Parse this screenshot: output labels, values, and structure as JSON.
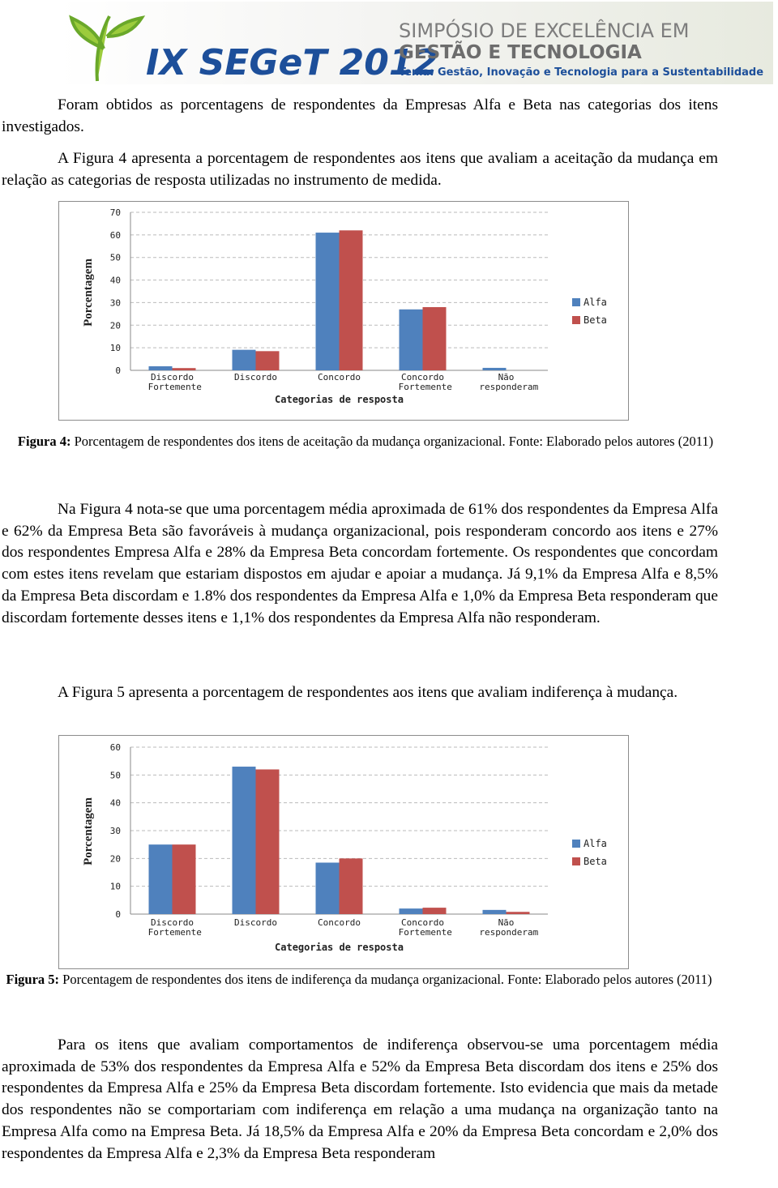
{
  "header": {
    "event": "IX SEGeT 2012",
    "line1": "SIMPÓSIO DE EXCELÊNCIA EM",
    "line2": "GESTÃO E TECNOLOGIA",
    "theme": "Tema: Gestão, Inovação e Tecnologia para a Sustentabilidade"
  },
  "paragraphs": [
    "Foram obtidos as porcentagens de respondentes da Empresas Alfa e Beta nas categorias dos itens investigados.",
    "A Figura 4 apresenta a porcentagem de respondentes aos itens que avaliam a aceitação da mudança em relação as categorias de resposta utilizadas no instrumento de medida.",
    "Na Figura 4 nota-se que uma porcentagem média aproximada de 61% dos respondentes da Empresa Alfa e 62% da Empresa Beta são favoráveis à mudança organizacional, pois responderam concordo aos itens e 27% dos respondentes Empresa Alfa e 28% da Empresa Beta concordam fortemente. Os respondentes que concordam com estes itens revelam que estariam dispostos em ajudar e apoiar a mudança. Já 9,1% da Empresa Alfa e 8,5% da Empresa Beta discordam e 1.8% dos respondentes da Empresa Alfa e 1,0% da Empresa Beta responderam que discordam fortemente desses itens e 1,1% dos respondentes da Empresa Alfa não responderam.",
    "A Figura 5 apresenta a porcentagem de respondentes aos itens que avaliam indiferença à mudança.",
    "Para os itens que avaliam comportamentos de indiferença observou-se uma porcentagem média aproximada de 53% dos respondentes da Empresa Alfa e 52% da Empresa Beta discordam dos itens e 25% dos respondentes da Empresa Alfa e 25% da Empresa Beta discordam fortemente. Isto evidencia que mais da metade dos respondentes não se comportariam com indiferença em relação a uma mudança na organização tanto na Empresa Alfa como na Empresa Beta. Já 18,5% da Empresa Alfa e 20% da Empresa Beta concordam e 2,0% dos respondentes da Empresa Alfa e 2,3% da Empresa Beta responderam"
  ],
  "captions": [
    {
      "label": "Figura 4:",
      "text": "Porcentagem de respondentes dos itens de aceitação da mudança organizacional. Fonte: Elaborado pelos autores (2011)"
    },
    {
      "label": "Figura 5:",
      "text": "Porcentagem de respondentes dos itens de indiferença da mudança organizacional. Fonte: Elaborado pelos autores (2011)"
    }
  ],
  "chart_data": [
    {
      "type": "bar",
      "y_label": "Porcentagem",
      "x_label": "Categorias de resposta",
      "categories": [
        "Discordo Fortemente",
        "Discordo",
        "Concordo",
        "Concordo Fortemente",
        "Não responderam"
      ],
      "series": [
        {
          "name": "Alfa",
          "color": "#4f81bd",
          "values": [
            1.8,
            9.1,
            61,
            27,
            1.1
          ]
        },
        {
          "name": "Beta",
          "color": "#c0504d",
          "values": [
            1.0,
            8.5,
            62,
            28,
            0
          ]
        }
      ],
      "ylim": [
        0,
        70
      ],
      "yticks": [
        0,
        10,
        20,
        30,
        40,
        50,
        60,
        70
      ],
      "grid": true,
      "legend": "right"
    },
    {
      "type": "bar",
      "y_label": "Porcentagem",
      "x_label": "Categorias de resposta",
      "categories": [
        "Discordo Fortemente",
        "Discordo",
        "Concordo",
        "Concordo Fortemente",
        "Não responderam"
      ],
      "series": [
        {
          "name": "Alfa",
          "color": "#4f81bd",
          "values": [
            25,
            53,
            18.5,
            2.0,
            1.5
          ]
        },
        {
          "name": "Beta",
          "color": "#c0504d",
          "values": [
            25,
            52,
            20,
            2.3,
            0.8
          ]
        }
      ],
      "ylim": [
        0,
        60
      ],
      "yticks": [
        0,
        10,
        20,
        30,
        40,
        50,
        60
      ],
      "grid": true,
      "legend": "right"
    }
  ]
}
